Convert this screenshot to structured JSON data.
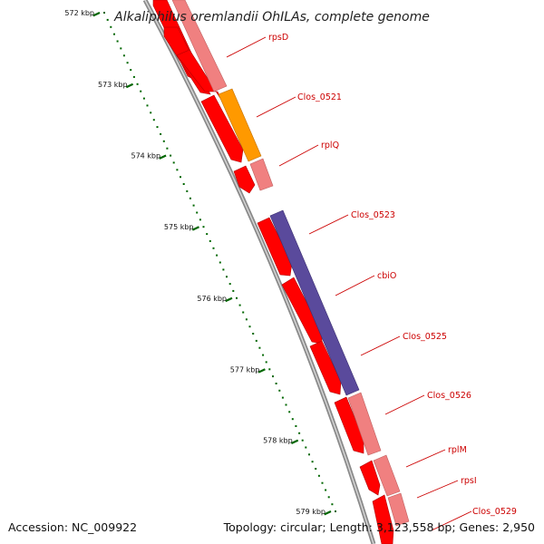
{
  "title": "Alkaliphilus oremlandii OhILAs, complete genome",
  "accession": "Accession: NC_009922",
  "summary": "Topology: circular; Length: 3,123,558 bp; Genes: 2,950",
  "colors": {
    "backbone": "#8a8a8a",
    "cds_red": "#ff0000",
    "cds_pink": "#f08080",
    "cds_orange": "#ff9900",
    "cds_purple": "#5a4a9c",
    "ticks": "#006600",
    "label": "#cc0000"
  },
  "kbp_ticks": [
    {
      "label": "572 kbp",
      "t": 0.0
    },
    {
      "label": "573 kbp",
      "t": 0.1429
    },
    {
      "label": "574 kbp",
      "t": 0.2857
    },
    {
      "label": "575 kbp",
      "t": 0.4286
    },
    {
      "label": "576 kbp",
      "t": 0.5714
    },
    {
      "label": "577 kbp",
      "t": 0.7143
    },
    {
      "label": "578 kbp",
      "t": 0.8571
    },
    {
      "label": "579 kbp",
      "t": 1.0
    }
  ],
  "gene_labels": [
    "rpsD",
    "Clos_0521",
    "rplQ",
    "Clos_0523",
    "cbiO",
    "Clos_0525",
    "Clos_0526",
    "rplM",
    "rpsI",
    "Clos_0529"
  ]
}
